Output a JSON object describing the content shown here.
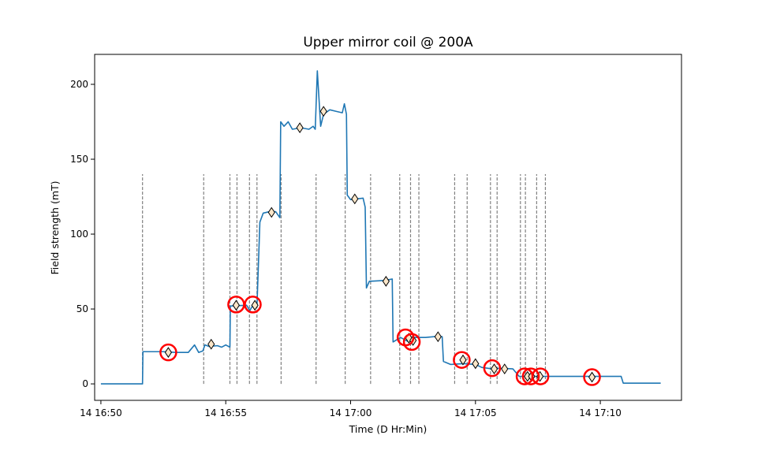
{
  "chart_data": {
    "type": "line",
    "title": "Upper mirror coil @ 200A",
    "xlabel": "Time (D Hr:Min)",
    "ylabel": "Field strength (mT)",
    "xlim": [
      "14 16:49:45",
      "14 17:13:15"
    ],
    "ylim": [
      -11,
      220
    ],
    "x_ticks": [
      {
        "t": "14 16:50:00",
        "label": "14 16:50"
      },
      {
        "t": "14 16:55:00",
        "label": "14 16:55"
      },
      {
        "t": "14 17:00:00",
        "label": "14 17:00"
      },
      {
        "t": "14 17:05:00",
        "label": "14 17:05"
      },
      {
        "t": "14 17:10:00",
        "label": "14 17:10"
      }
    ],
    "y_ticks": [
      0,
      50,
      100,
      150,
      200
    ],
    "grid": false,
    "colors": {
      "line": "#1f77b4",
      "marker_fill": "#fbe6c8",
      "marker_edge": "#000000",
      "circle": "#ff0000",
      "vline": "#808080"
    },
    "series": [
      {
        "points": [
          [
            "14 16:50:00",
            0
          ],
          [
            "14 16:51:40",
            0
          ],
          [
            "14 16:51:41",
            21.5
          ],
          [
            "14 16:52:30",
            21.5
          ],
          [
            "14 16:53:00",
            21
          ],
          [
            "14 16:53:30",
            21
          ],
          [
            "14 16:53:45",
            26
          ],
          [
            "14 16:53:55",
            21
          ],
          [
            "14 16:54:05",
            22
          ],
          [
            "14 16:54:10",
            26
          ],
          [
            "14 16:54:20",
            25
          ],
          [
            "14 16:54:40",
            25.5
          ],
          [
            "14 16:54:50",
            24.5
          ],
          [
            "14 16:55:00",
            26
          ],
          [
            "14 16:55:10",
            24.5
          ],
          [
            "14 16:55:11",
            52
          ],
          [
            "14 16:55:50",
            52.5
          ],
          [
            "14 16:55:58",
            49
          ],
          [
            "14 16:56:05",
            52.5
          ],
          [
            "14 16:56:15",
            52
          ],
          [
            "14 16:56:22",
            108
          ],
          [
            "14 16:56:30",
            114
          ],
          [
            "14 16:56:45",
            115
          ],
          [
            "14 16:57:00",
            115
          ],
          [
            "14 16:57:10",
            111
          ],
          [
            "14 16:57:12",
            175
          ],
          [
            "14 16:57:20",
            172
          ],
          [
            "14 16:57:30",
            175
          ],
          [
            "14 16:57:40",
            170
          ],
          [
            "14 16:58:00",
            171
          ],
          [
            "14 16:58:20",
            170
          ],
          [
            "14 16:58:30",
            172
          ],
          [
            "14 16:58:35",
            170
          ],
          [
            "14 16:58:40",
            209
          ],
          [
            "14 16:58:48",
            172
          ],
          [
            "14 16:58:55",
            180
          ],
          [
            "14 16:59:10",
            183
          ],
          [
            "14 16:59:25",
            182
          ],
          [
            "14 16:59:40",
            181
          ],
          [
            "14 16:59:45",
            187
          ],
          [
            "14 16:59:50",
            180
          ],
          [
            "14 16:59:52",
            126
          ],
          [
            "14 17:00:00",
            123
          ],
          [
            "14 17:00:30",
            124
          ],
          [
            "14 17:00:35",
            118
          ],
          [
            "14 17:00:38",
            64
          ],
          [
            "14 17:00:45",
            68.5
          ],
          [
            "14 17:01:20",
            69
          ],
          [
            "14 17:01:40",
            70
          ],
          [
            "14 17:01:42",
            28
          ],
          [
            "14 17:02:00",
            31
          ],
          [
            "14 17:02:20",
            28
          ],
          [
            "14 17:02:30",
            31
          ],
          [
            "14 17:03:00",
            31
          ],
          [
            "14 17:03:20",
            31.5
          ],
          [
            "14 17:03:40",
            31.5
          ],
          [
            "14 17:03:43",
            15
          ],
          [
            "14 17:04:00",
            13
          ],
          [
            "14 17:04:30",
            13.5
          ],
          [
            "14 17:05:00",
            13
          ],
          [
            "14 17:05:15",
            11
          ],
          [
            "14 17:05:40",
            10
          ],
          [
            "14 17:06:00",
            10.5
          ],
          [
            "14 17:06:30",
            10
          ],
          [
            "14 17:06:45",
            5
          ],
          [
            "14 17:07:30",
            5
          ],
          [
            "14 17:08:00",
            5
          ],
          [
            "14 17:09:00",
            5
          ],
          [
            "14 17:10:00",
            5
          ],
          [
            "14 17:10:50",
            5
          ],
          [
            "14 17:10:55",
            0.5
          ],
          [
            "14 17:12:25",
            0.5
          ]
        ]
      }
    ],
    "markers": [
      [
        "14 16:52:42",
        21
      ],
      [
        "14 16:54:25",
        26.5
      ],
      [
        "14 16:55:25",
        52.5
      ],
      [
        "14 16:56:10",
        52.5
      ],
      [
        "14 16:56:50",
        114.5
      ],
      [
        "14 16:57:58",
        171
      ],
      [
        "14 16:58:55",
        182
      ],
      [
        "14 17:00:10",
        123.5
      ],
      [
        "14 17:01:25",
        68.5
      ],
      [
        "14 17:02:20",
        30.5
      ],
      [
        "14 17:02:30",
        29
      ],
      [
        "14 17:03:30",
        31.5
      ],
      [
        "14 17:04:30",
        16
      ],
      [
        "14 17:05:00",
        13.5
      ],
      [
        "14 17:05:45",
        10
      ],
      [
        "14 17:06:10",
        10
      ],
      [
        "14 17:07:05",
        5
      ],
      [
        "14 17:07:15",
        5
      ],
      [
        "14 17:07:35",
        5
      ],
      [
        "14 17:09:40",
        4.5
      ]
    ],
    "circled": [
      [
        "14 16:52:42",
        21
      ],
      [
        "14 16:55:25",
        53
      ],
      [
        "14 16:56:05",
        53
      ],
      [
        "14 17:02:12",
        31
      ],
      [
        "14 17:02:27",
        28
      ],
      [
        "14 17:04:27",
        16
      ],
      [
        "14 17:05:40",
        10.5
      ],
      [
        "14 17:06:58",
        5
      ],
      [
        "14 17:07:13",
        5
      ],
      [
        "14 17:07:36",
        5
      ],
      [
        "14 17:09:40",
        4.5
      ]
    ],
    "vlines": {
      "ymin": 0,
      "ymax": 140,
      "x": [
        "14 16:51:40",
        "14 16:54:07",
        "14 16:55:10",
        "14 16:55:27",
        "14 16:55:57",
        "14 16:56:15",
        "14 16:57:13",
        "14 16:58:37",
        "14 16:59:47",
        "14 17:00:48",
        "14 17:01:58",
        "14 17:02:24",
        "14 17:02:44",
        "14 17:04:10",
        "14 17:04:40",
        "14 17:05:36",
        "14 17:05:52",
        "14 17:06:48",
        "14 17:07:00",
        "14 17:07:27",
        "14 17:07:48"
      ]
    }
  }
}
